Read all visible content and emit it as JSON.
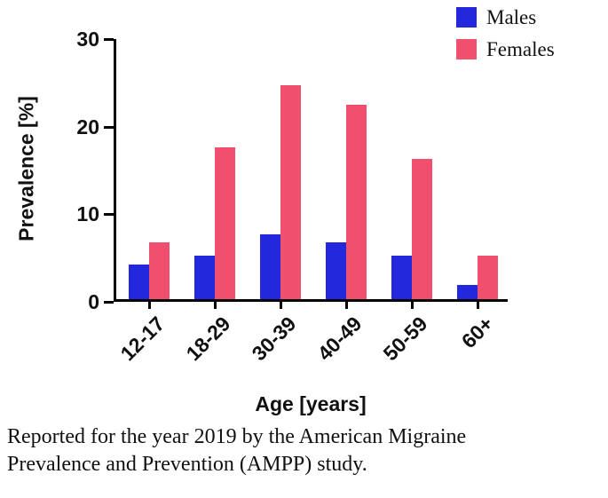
{
  "colors": {
    "males": "#2428dc",
    "females": "#f0506e",
    "axis": "#000000",
    "background": "#ffffff"
  },
  "chart_data": {
    "type": "bar",
    "categories": [
      "12-17",
      "18-29",
      "30-39",
      "40-49",
      "50-59",
      "60+"
    ],
    "series": [
      {
        "name": "Males",
        "color": "#2428dc",
        "values": [
          4.0,
          5.0,
          7.4,
          6.5,
          5.0,
          1.6
        ]
      },
      {
        "name": "Females",
        "color": "#f0506e",
        "values": [
          6.5,
          17.3,
          24.4,
          22.2,
          16.0,
          5.0
        ]
      }
    ],
    "title": "",
    "xlabel": "Age [years]",
    "ylabel": "Prevalence [%]",
    "ylim": [
      0,
      30
    ],
    "yticks": [
      0,
      10,
      20,
      30
    ],
    "legend_position": "top-right",
    "grid": false
  },
  "caption": {
    "lines": [
      "Reported for the year 2019 by the American Migraine",
      "Prevalence and Prevention (AMPP) study."
    ]
  }
}
